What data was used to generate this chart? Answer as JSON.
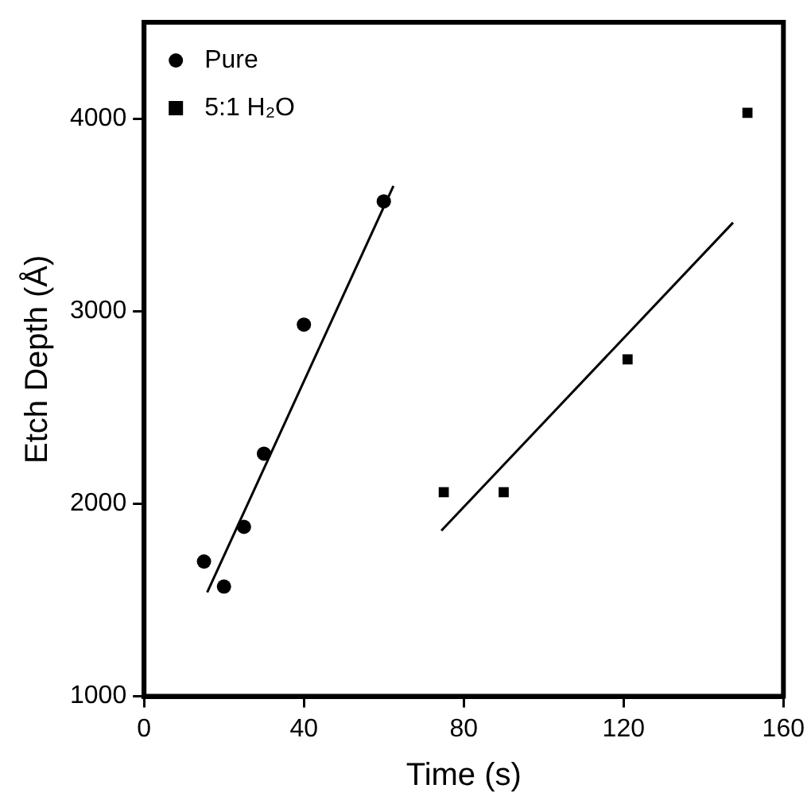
{
  "chart_data": {
    "type": "scatter",
    "xlabel": "Time (s)",
    "ylabel": "Etch Depth (Å)",
    "xlim": [
      0,
      160
    ],
    "xticks": [
      0,
      40,
      80,
      120,
      160
    ],
    "ylim": [
      1000,
      4500
    ],
    "yticks": [
      1000,
      2000,
      3000,
      4000
    ],
    "grid": false,
    "legend": "top left",
    "series": [
      {
        "name": "Pure",
        "type": "scatter",
        "marker": "circle",
        "color": "#000000",
        "x": [
          15,
          20,
          25,
          30,
          40,
          60
        ],
        "values": [
          1700,
          1570,
          1880,
          2260,
          2930,
          3570
        ]
      },
      {
        "name": "5:1 H₂O",
        "type": "scatter",
        "marker": "square",
        "color": "#000000",
        "x": [
          75,
          90,
          121,
          151
        ],
        "values": [
          2060,
          2060,
          2750,
          4030
        ]
      },
      {
        "type": "line",
        "marker": "none",
        "color": "#000000",
        "x": [
          15.8,
          62.4
        ],
        "values": [
          1540,
          3650
        ]
      },
      {
        "type": "line",
        "marker": "none",
        "color": "#000000",
        "x": [
          74.4,
          147.4
        ],
        "values": [
          1860,
          3460
        ]
      }
    ]
  }
}
